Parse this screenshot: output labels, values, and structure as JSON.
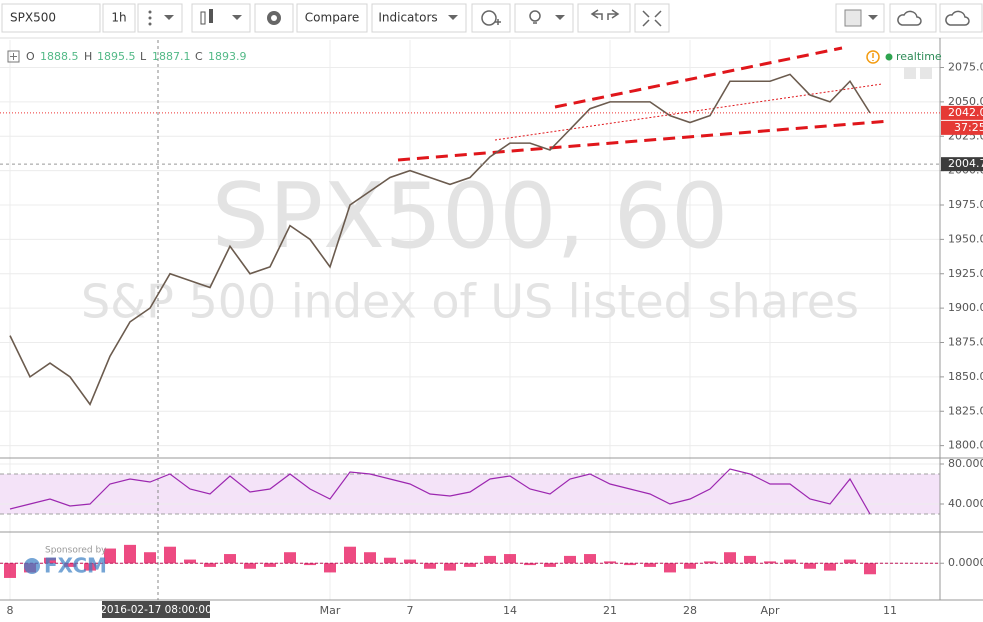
{
  "toolbar": {
    "symbol": "SPX500",
    "interval": "1h",
    "compare": "Compare",
    "indicators": "Indicators"
  },
  "legend": {
    "open_label": "O",
    "open": 1888.5,
    "high_label": "H",
    "high": 1895.5,
    "low_label": "L",
    "low": 1887.1,
    "close_label": "C",
    "close": 1893.9
  },
  "status": "realtime",
  "sponsor": {
    "text": "Sponsored by",
    "brand": "FXCM"
  },
  "chart_data": [
    {
      "type": "line",
      "title": "SPX500, 60",
      "subtitle": "S&P 500 index of US listed shares",
      "categories": [
        "8",
        null,
        null,
        null,
        null,
        null,
        null,
        null,
        null,
        null,
        null,
        null,
        null,
        null,
        null,
        null,
        "Mar",
        null,
        null,
        null,
        "7",
        null,
        null,
        null,
        null,
        "14",
        null,
        null,
        null,
        null,
        "21",
        null,
        null,
        null,
        "28",
        null,
        null,
        null,
        "Apr",
        null,
        null,
        null,
        null,
        null,
        "11",
        null,
        null
      ],
      "values": [
        1880,
        1850,
        1860,
        1850,
        1830,
        1865,
        1890,
        1900,
        1925,
        1920,
        1915,
        1945,
        1925,
        1930,
        1960,
        1950,
        1930,
        1975,
        1985,
        1995,
        2000,
        1995,
        1990,
        1995,
        2010,
        2020,
        2020,
        2015,
        2030,
        2045,
        2050,
        2050,
        2050,
        2040,
        2035,
        2040,
        2065,
        2065,
        2065,
        2070,
        2055,
        2050,
        2065,
        2042,
        null,
        null,
        null
      ],
      "color": "#6b5b4e",
      "ylim": [
        1791,
        2095
      ],
      "yticks": [
        {
          "value": 1800,
          "label": "1800.0"
        },
        {
          "value": 1825,
          "label": "1825.0"
        },
        {
          "value": 1850,
          "label": "1850.0"
        },
        {
          "value": 1875,
          "label": "1875.0"
        },
        {
          "value": 1900,
          "label": "1900.0"
        },
        {
          "value": 1925,
          "label": "1925.0"
        },
        {
          "value": 1950,
          "label": "1950.0"
        },
        {
          "value": 1975,
          "label": "1975.0"
        },
        {
          "value": 2000,
          "label": "2000.0"
        },
        {
          "value": 2025,
          "label": "2025.0"
        },
        {
          "value": 2050,
          "label": "2050.0"
        },
        {
          "value": 2075,
          "label": "2075.0"
        }
      ],
      "last_value": {
        "value": 2042,
        "label": "2042.0"
      },
      "countdown": "37:25",
      "price_line": {
        "value": 2004.7,
        "label": "2004.7"
      },
      "crosshair_label": "2016-02-17 08:00:00",
      "grid": true
    },
    {
      "type": "line",
      "color": "#9c27b0",
      "values": [
        35,
        40,
        45,
        38,
        40,
        60,
        65,
        62,
        70,
        55,
        50,
        68,
        52,
        55,
        70,
        55,
        45,
        72,
        70,
        65,
        60,
        50,
        48,
        52,
        65,
        68,
        55,
        50,
        65,
        70,
        60,
        55,
        50,
        40,
        45,
        55,
        75,
        70,
        60,
        60,
        45,
        40,
        65,
        30,
        null,
        null,
        null
      ],
      "ylim": [
        12,
        86
      ],
      "band": [
        30,
        70
      ],
      "yticks": [
        {
          "value": 80,
          "label": "80.0000"
        },
        {
          "value": 40,
          "label": "40.0000"
        }
      ]
    },
    {
      "type": "bar",
      "color": "#e91e63",
      "values": [
        -8,
        -5,
        3,
        -2,
        -4,
        8,
        10,
        6,
        9,
        2,
        -2,
        5,
        -3,
        -2,
        6,
        -1,
        -5,
        9,
        6,
        3,
        2,
        -3,
        -4,
        -2,
        4,
        5,
        -1,
        -2,
        4,
        5,
        1,
        -1,
        -2,
        -5,
        -3,
        1,
        6,
        4,
        1,
        2,
        -3,
        -4,
        2,
        -6,
        null,
        null,
        null
      ],
      "ylim": [
        -20,
        17
      ],
      "yticks": [
        {
          "value": 0,
          "label": "0.0000"
        }
      ]
    }
  ]
}
